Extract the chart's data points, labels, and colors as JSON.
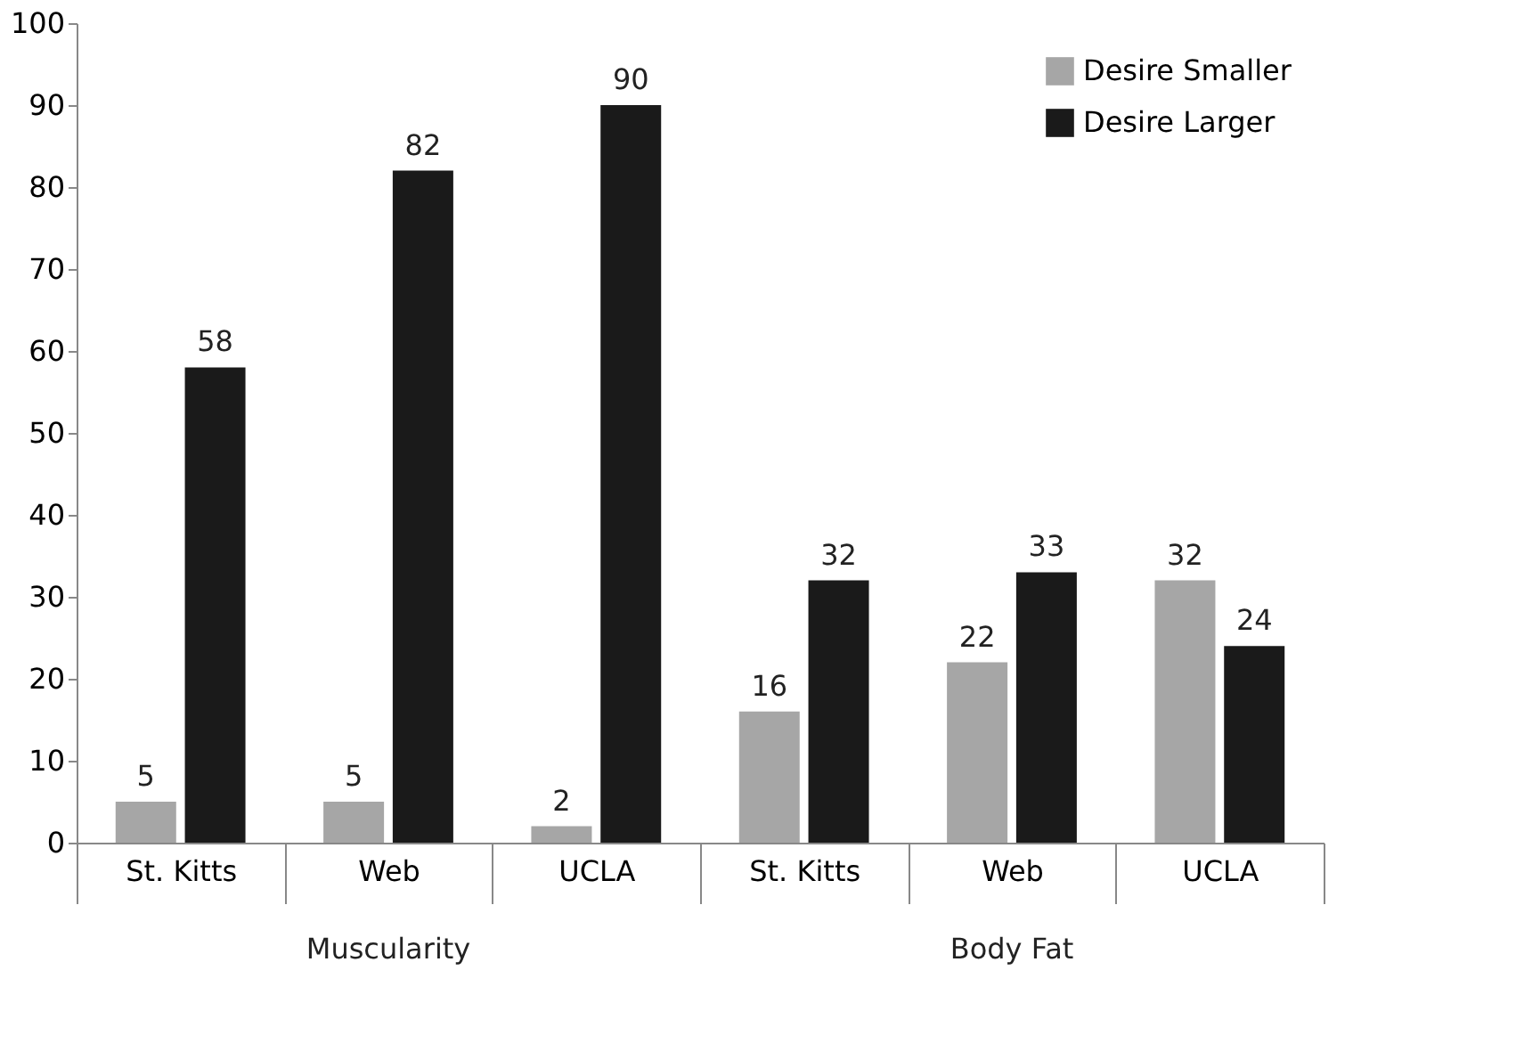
{
  "chart_data": {
    "type": "bar",
    "categories": [
      "St. Kitts",
      "Web",
      "UCLA",
      "St. Kitts",
      "Web",
      "UCLA"
    ],
    "series": [
      {
        "name": "Desire Smaller",
        "color": "#a6a6a6",
        "values": [
          5,
          5,
          2,
          16,
          22,
          32
        ]
      },
      {
        "name": "Desire Larger",
        "color": "#1a1a1a",
        "values": [
          58,
          82,
          90,
          32,
          33,
          24
        ]
      }
    ],
    "ylim": [
      0,
      100
    ],
    "yticks": [
      0,
      10,
      20,
      30,
      40,
      50,
      60,
      70,
      80,
      90,
      100
    ],
    "annotations": [
      "Muscularity",
      "Body Fat"
    ],
    "data_labels": true,
    "legend": "top right",
    "grid": false
  }
}
